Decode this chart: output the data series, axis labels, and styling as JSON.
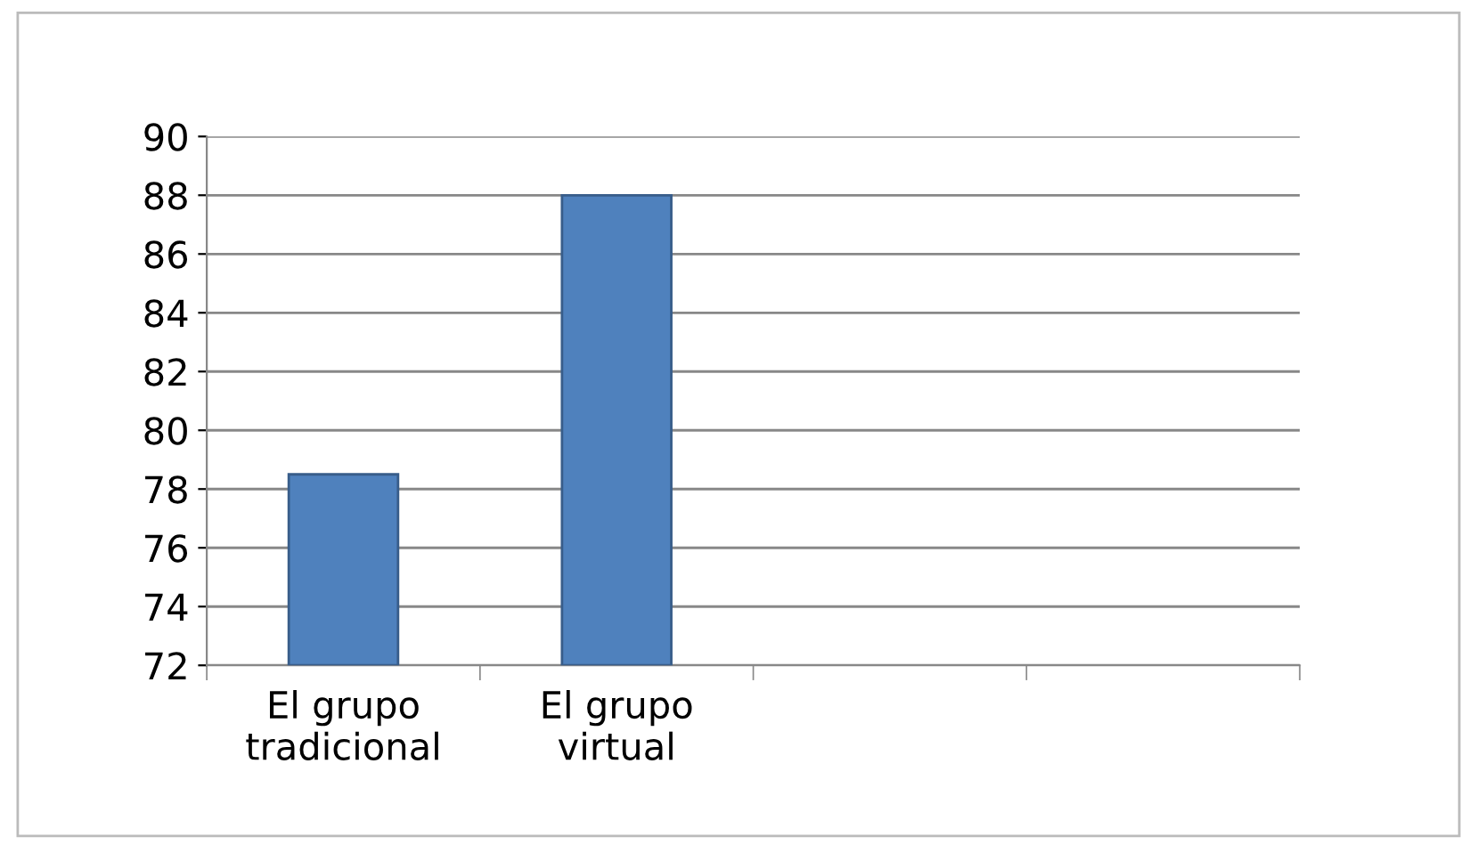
{
  "chart_data": {
    "type": "bar",
    "categories": [
      "El grupo\ntradicional",
      "El grupo\nvirtual",
      null,
      null
    ],
    "values": [
      78.5,
      88,
      null,
      null
    ],
    "color": "#4f81bd",
    "ylim": [
      72,
      90
    ],
    "yticks": [
      72,
      74,
      76,
      78,
      80,
      82,
      84,
      86,
      88,
      90
    ],
    "grid": "y",
    "legend": false
  }
}
